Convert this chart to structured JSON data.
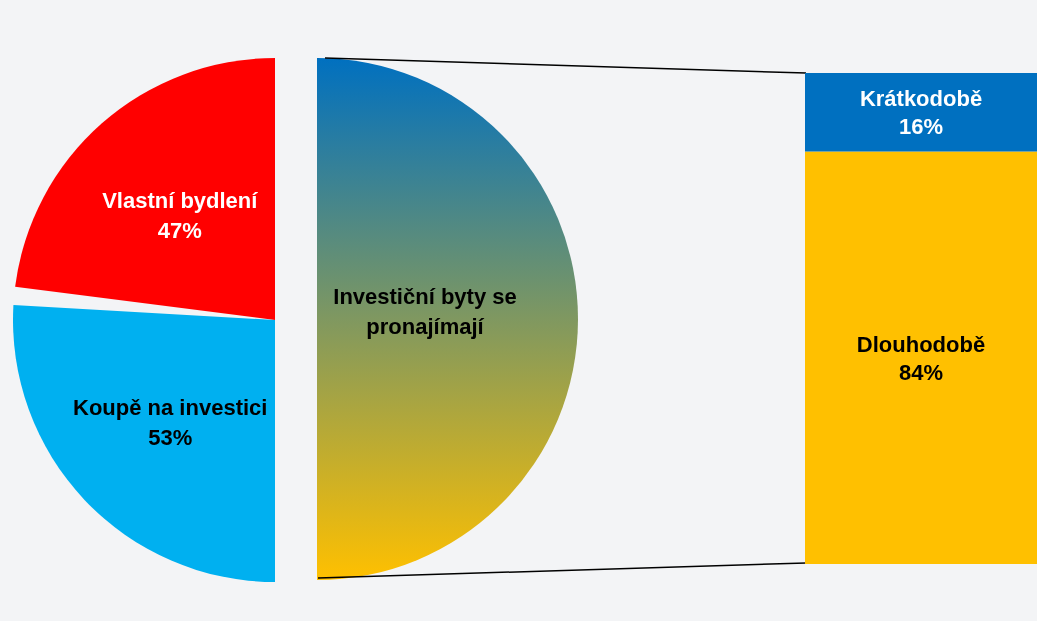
{
  "chart_data": [
    {
      "type": "pie",
      "categories": [
        "Vlastní bydlení",
        "Koupě na investici"
      ],
      "values": [
        47,
        53
      ],
      "colors": [
        "#ff0000",
        "#00b0f0"
      ],
      "value_labels": [
        "47%",
        "53%"
      ],
      "legend": false
    },
    {
      "type": "bar",
      "stacked": true,
      "categories": [
        null
      ],
      "annotations": [
        "Investiční byty se pronajímají"
      ],
      "legend": false,
      "series": [
        {
          "name": "Dlouhodobě",
          "color": "#ffc000",
          "values": [
            84
          ],
          "value_labels": [
            "84%"
          ]
        },
        {
          "name": "Krátkodobě",
          "color": "#0070c0",
          "values": [
            16
          ],
          "value_labels": [
            "16%"
          ]
        }
      ]
    }
  ]
}
